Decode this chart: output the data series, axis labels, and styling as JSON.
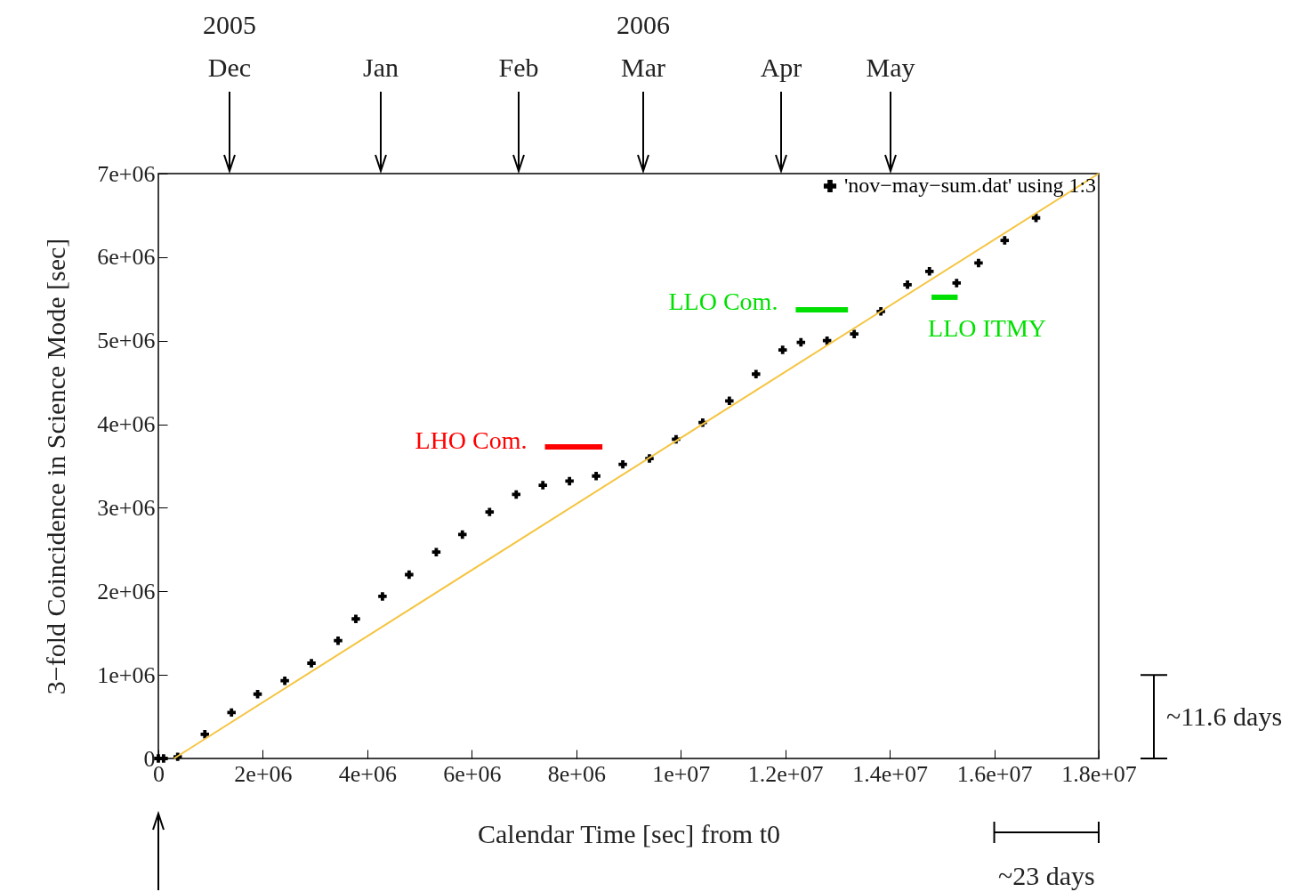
{
  "chart_data": {
    "type": "scatter",
    "xlabel": "Calendar Time [sec] from t0",
    "ylabel": "3−fold Coincidence in Science Mode [sec]",
    "xlim": [
      0,
      18000000
    ],
    "ylim": [
      0,
      7000000
    ],
    "xticks": [
      {
        "value": 0,
        "label": "0"
      },
      {
        "value": 2000000,
        "label": "2e+06"
      },
      {
        "value": 4000000,
        "label": "4e+06"
      },
      {
        "value": 6000000,
        "label": "6e+06"
      },
      {
        "value": 8000000,
        "label": "8e+06"
      },
      {
        "value": 10000000,
        "label": "1e+07"
      },
      {
        "value": 12000000,
        "label": "1.2e+07"
      },
      {
        "value": 14000000,
        "label": "1.4e+07"
      },
      {
        "value": 16000000,
        "label": "1.6e+07"
      },
      {
        "value": 18000000,
        "label": "1.8e+07"
      }
    ],
    "yticks": [
      {
        "value": 0,
        "label": "0"
      },
      {
        "value": 1000000,
        "label": "1e+06"
      },
      {
        "value": 2000000,
        "label": "2e+06"
      },
      {
        "value": 3000000,
        "label": "3e+06"
      },
      {
        "value": 4000000,
        "label": "4e+06"
      },
      {
        "value": 5000000,
        "label": "5e+06"
      },
      {
        "value": 6000000,
        "label": "6e+06"
      },
      {
        "value": 7000000,
        "label": "7e+06"
      }
    ],
    "legend": "top right",
    "grid": false,
    "series": [
      {
        "name": "'nov−may−sum.dat' using 1:3",
        "color": "#000000",
        "marker": "cross",
        "x": [
          0,
          100000,
          370000,
          890000,
          1400000,
          1900000,
          2420000,
          2930000,
          3440000,
          3780000,
          4290000,
          4800000,
          5320000,
          5820000,
          6340000,
          6850000,
          7360000,
          7870000,
          8380000,
          8890000,
          9400000,
          9910000,
          10420000,
          10930000,
          11440000,
          11950000,
          12300000,
          12800000,
          13320000,
          13830000,
          14340000,
          14760000,
          15280000,
          15700000,
          16200000,
          16800000
        ],
        "values": [
          0,
          0,
          20000,
          290000,
          550000,
          770000,
          930000,
          1140000,
          1410000,
          1670000,
          1940000,
          2200000,
          2470000,
          2680000,
          2950000,
          3160000,
          3270000,
          3320000,
          3380000,
          3520000,
          3590000,
          3820000,
          4020000,
          4280000,
          4600000,
          4890000,
          4980000,
          5000000,
          5080000,
          5350000,
          5670000,
          5830000,
          5690000,
          5930000,
          6200000,
          6470000
        ]
      },
      {
        "type": "line",
        "color": "#f5c542",
        "x": [
          300000,
          18000000
        ],
        "values": [
          0,
          7000000
        ]
      },
      {
        "type": "line",
        "name": "LHO Com.",
        "color": "#ff0000",
        "x": [
          7400000,
          8500000
        ],
        "values": [
          3730000,
          3730000
        ]
      },
      {
        "type": "line",
        "name": "LLO Com.",
        "color": "#00e000",
        "x": [
          12200000,
          13200000
        ],
        "values": [
          5370000,
          5370000
        ]
      },
      {
        "type": "line",
        "name": "LLO ITMY",
        "color": "#00e000",
        "x": [
          14800000,
          15300000
        ],
        "values": [
          5520000,
          5520000
        ]
      }
    ],
    "annotations": [
      "~11.6 days",
      "~23 days",
      "2005",
      "Dec",
      "Jan",
      "Feb",
      "2006",
      "Mar",
      "Apr",
      "May"
    ]
  }
}
